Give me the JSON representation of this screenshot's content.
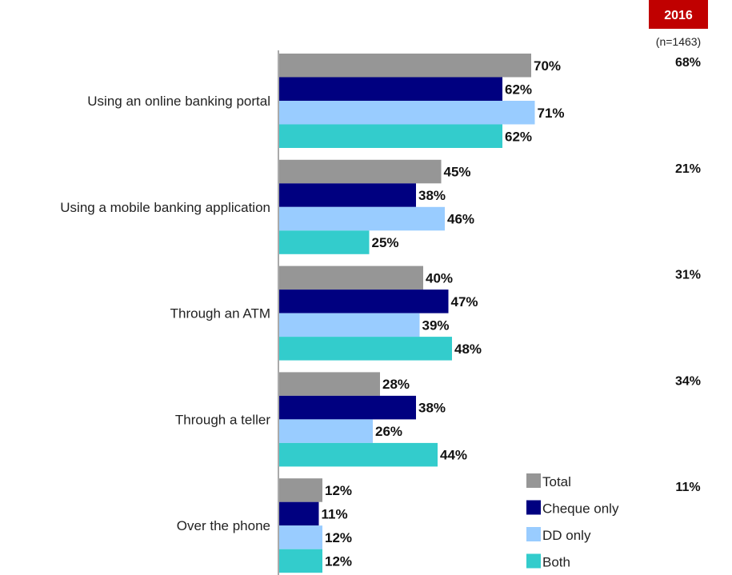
{
  "chart_data": {
    "type": "bar",
    "orientation": "horizontal",
    "categories": [
      "Using an online banking portal",
      "Using a mobile banking application",
      "Through an ATM",
      "Through a teller",
      "Over the phone"
    ],
    "series": [
      {
        "name": "Total",
        "color": "#969696",
        "values": [
          70,
          45,
          40,
          28,
          12
        ]
      },
      {
        "name": "Cheque only",
        "color": "#000080",
        "values": [
          62,
          38,
          47,
          38,
          11
        ]
      },
      {
        "name": "DD only",
        "color": "#99ccff",
        "values": [
          71,
          46,
          39,
          26,
          12
        ]
      },
      {
        "name": "Both",
        "color": "#33cccc",
        "values": [
          62,
          25,
          48,
          44,
          12
        ]
      }
    ],
    "value_suffix": "%",
    "xlim": [
      0,
      100
    ],
    "grid": false,
    "legend": "bottom-right",
    "comparison": {
      "year": "2016",
      "n_label": "(n=1463)",
      "header_color": "#c00000",
      "values": [
        68,
        21,
        31,
        34,
        11
      ]
    }
  }
}
